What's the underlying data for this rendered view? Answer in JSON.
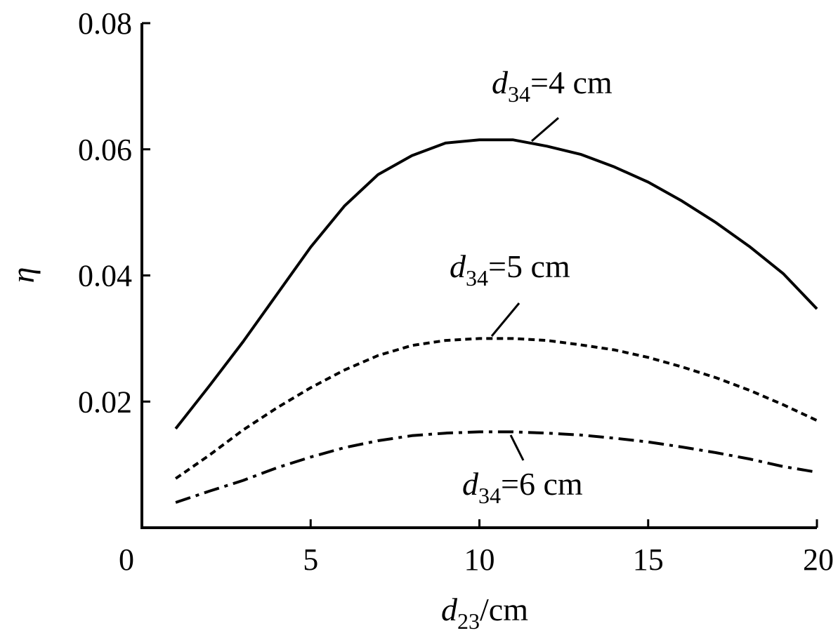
{
  "chart_data": {
    "type": "line",
    "title": "",
    "xlabel": {
      "main": "d",
      "sub": "23",
      "unit": "/cm"
    },
    "ylabel": "η",
    "xlim": [
      0,
      20
    ],
    "ylim": [
      0,
      0.08
    ],
    "xticks": [
      0,
      5,
      10,
      15,
      20
    ],
    "xtick_labels": [
      "0",
      "5",
      "10",
      "15",
      "20"
    ],
    "yticks": [
      0.02,
      0.04,
      0.06,
      0.08
    ],
    "ytick_labels": [
      "0.02",
      "0.04",
      "0.06",
      "0.08"
    ],
    "grid": false,
    "legend": "none",
    "series": [
      {
        "dash": "solid",
        "x": [
          1,
          2,
          3,
          4,
          5,
          6,
          7,
          8,
          9,
          10,
          11,
          12,
          13,
          14,
          15,
          16,
          17,
          18,
          19,
          20
        ],
        "values": [
          0.0157,
          0.0225,
          0.0295,
          0.037,
          0.0445,
          0.051,
          0.056,
          0.059,
          0.061,
          0.0615,
          0.0615,
          0.0605,
          0.0592,
          0.0572,
          0.0548,
          0.0518,
          0.0484,
          0.0446,
          0.0403,
          0.0347
        ]
      },
      {
        "dash": "dotted",
        "x": [
          1,
          2,
          3,
          4,
          5,
          6,
          7,
          8,
          9,
          10,
          11,
          12,
          13,
          14,
          15,
          16,
          17,
          18,
          19,
          20
        ],
        "values": [
          0.0078,
          0.0115,
          0.0155,
          0.019,
          0.0222,
          0.025,
          0.0273,
          0.0289,
          0.0297,
          0.03,
          0.03,
          0.0297,
          0.029,
          0.0282,
          0.027,
          0.0255,
          0.0238,
          0.0218,
          0.0195,
          0.017
        ]
      },
      {
        "dash": "dash-dot",
        "x": [
          1,
          2,
          3,
          4,
          5,
          6,
          7,
          8,
          9,
          10,
          11,
          12,
          13,
          14,
          15,
          16,
          17,
          18,
          19,
          20
        ],
        "values": [
          0.004,
          0.0058,
          0.0075,
          0.0095,
          0.0112,
          0.0127,
          0.0138,
          0.0146,
          0.015,
          0.0152,
          0.0152,
          0.015,
          0.0147,
          0.0142,
          0.0136,
          0.0128,
          0.0119,
          0.0109,
          0.0097,
          0.0088
        ]
      }
    ],
    "annotations": [
      {
        "main": "d",
        "sub": "34",
        "rest": "=4 cm",
        "series_index": 0,
        "point": [
          11.5,
          0.0615
        ]
      },
      {
        "main": "d",
        "sub": "34",
        "rest": "=5 cm",
        "series_index": 1,
        "point": [
          10.4,
          0.03
        ]
      },
      {
        "main": "d",
        "sub": "34",
        "rest": "=6 cm",
        "series_index": 2,
        "point": [
          11.8,
          0.0152
        ]
      }
    ]
  }
}
